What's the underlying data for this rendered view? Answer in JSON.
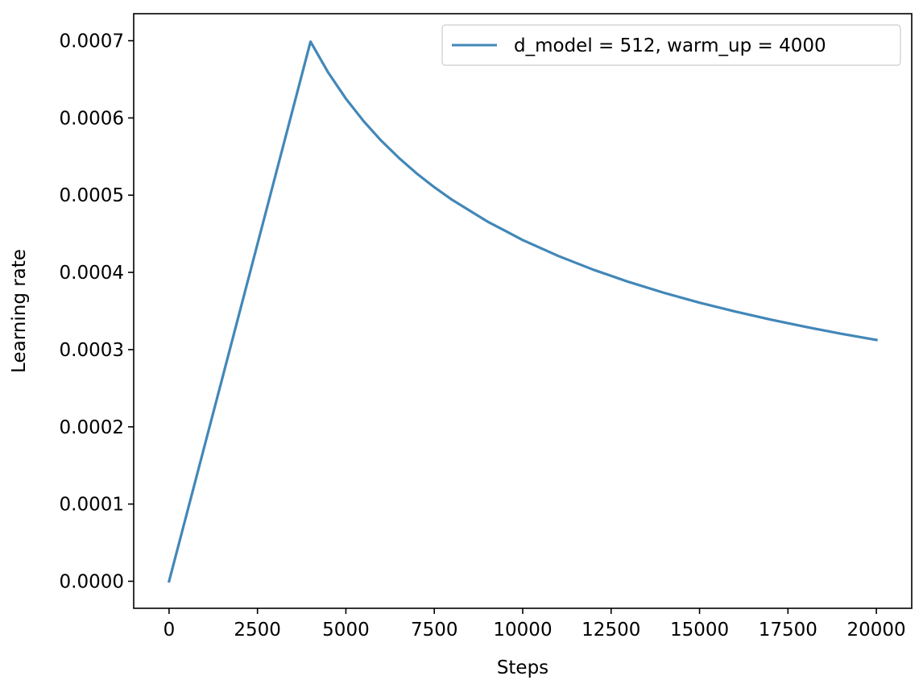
{
  "chart_data": {
    "type": "line",
    "title": "",
    "xlabel": "Steps",
    "ylabel": "Learning rate",
    "xlim": [
      -1000,
      21000
    ],
    "ylim": [
      -3.5e-05,
      0.000735
    ],
    "xticks": [
      0,
      2500,
      5000,
      7500,
      10000,
      12500,
      15000,
      17500,
      20000
    ],
    "xtick_labels": [
      "0",
      "2500",
      "5000",
      "7500",
      "10000",
      "12500",
      "15000",
      "17500",
      "20000"
    ],
    "yticks": [
      0,
      0.0001,
      0.0002,
      0.0003,
      0.0004,
      0.0005,
      0.0006,
      0.0007
    ],
    "ytick_labels": [
      "0.0000",
      "0.0001",
      "0.0002",
      "0.0003",
      "0.0004",
      "0.0005",
      "0.0006",
      "0.0007"
    ],
    "grid": false,
    "legend_position": "top-right",
    "series": [
      {
        "name": "d_model = 512, warm_up = 4000",
        "color": "#4287b8",
        "x": [
          0,
          500,
          1000,
          1500,
          2000,
          2500,
          3000,
          3500,
          4000,
          4500,
          5000,
          5500,
          6000,
          6500,
          7000,
          7500,
          8000,
          9000,
          10000,
          11000,
          12000,
          13000,
          14000,
          15000,
          16000,
          17000,
          18000,
          19000,
          20000
        ],
        "y": [
          0.0,
          8.73e-05,
          0.0001747,
          0.000262,
          0.0003494,
          0.0004367,
          0.0005241,
          0.0006114,
          0.0006988,
          0.0006588,
          0.000625,
          0.0005959,
          0.0005705,
          0.0005482,
          0.0005282,
          0.0005103,
          0.0004941,
          0.0004659,
          0.0004419,
          0.0004214,
          0.0004034,
          0.0003876,
          0.0003735,
          0.0003608,
          0.0003494,
          0.000339,
          0.0003294,
          0.0003206,
          0.0003125
        ]
      }
    ]
  }
}
